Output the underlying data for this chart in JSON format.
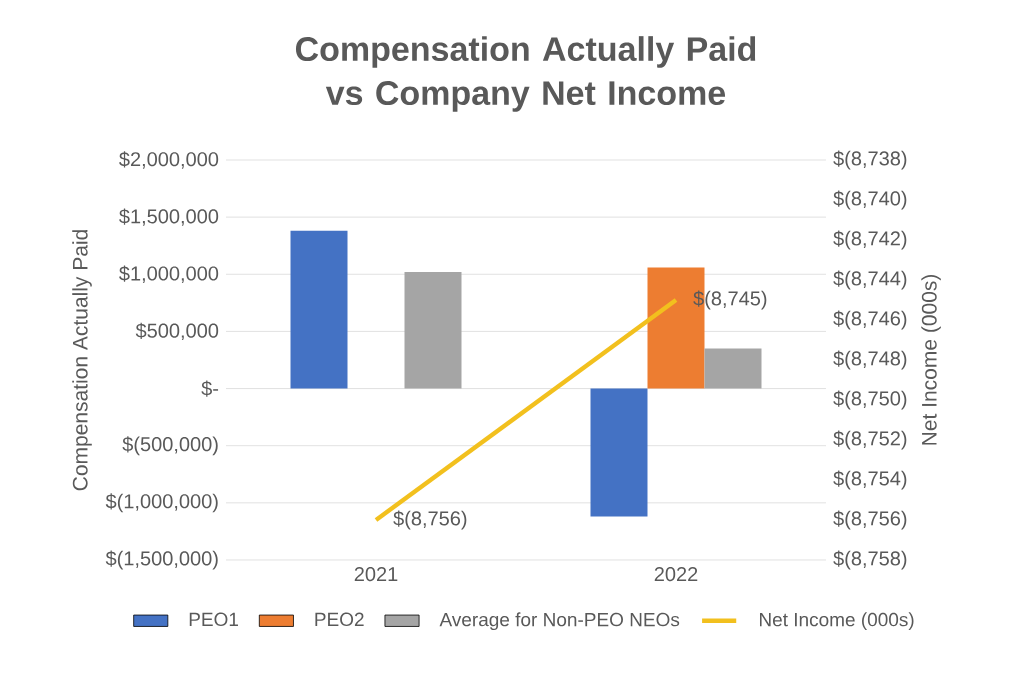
{
  "chart_data": {
    "type": "bar",
    "title": "Compensation Actually Paid vs Company Net Income",
    "ylabel": "Compensation Actually Paid",
    "y2label": "Net Income (000s)",
    "categories": [
      "2021",
      "2022"
    ],
    "series": [
      {
        "name": "PEO1",
        "color": "#4472c4",
        "values": [
          1380000,
          -1120000
        ]
      },
      {
        "name": "PEO2",
        "color": "#ed7d31",
        "values": [
          null,
          1060000
        ]
      },
      {
        "name": "Average for Non-PEO NEOs",
        "color": "#a5a5a5",
        "values": [
          1020000,
          350000
        ]
      },
      {
        "name": "Net Income (000s)",
        "type": "line",
        "axis": "y2",
        "color": "#f2c01e",
        "values": [
          -8756,
          -8745
        ],
        "value_labels": [
          "$(8,756)",
          "$(8,745)"
        ]
      }
    ],
    "ylim": [
      -1500000,
      2000000
    ],
    "yticks": [
      {
        "value": -1500000,
        "label": "$(1,500,000)"
      },
      {
        "value": -1000000,
        "label": "$(1,000,000)"
      },
      {
        "value": -500000,
        "label": "$(500,000)"
      },
      {
        "value": 0,
        "label": "$-"
      },
      {
        "value": 500000,
        "label": "$500,000"
      },
      {
        "value": 1000000,
        "label": "$1,000,000"
      },
      {
        "value": 1500000,
        "label": "$1,500,000"
      },
      {
        "value": 2000000,
        "label": "$2,000,000"
      }
    ],
    "y2lim": [
      -8758,
      -8738
    ],
    "y2ticks": [
      {
        "value": -8758,
        "label": "$(8,758)"
      },
      {
        "value": -8756,
        "label": "$(8,756)"
      },
      {
        "value": -8754,
        "label": "$(8,754)"
      },
      {
        "value": -8752,
        "label": "$(8,752)"
      },
      {
        "value": -8750,
        "label": "$(8,750)"
      },
      {
        "value": -8748,
        "label": "$(8,748)"
      },
      {
        "value": -8746,
        "label": "$(8,746)"
      },
      {
        "value": -8744,
        "label": "$(8,744)"
      },
      {
        "value": -8742,
        "label": "$(8,742)"
      },
      {
        "value": -8740,
        "label": "$(8,740)"
      },
      {
        "value": -8738,
        "label": "$(8,738)"
      }
    ],
    "grid": "y",
    "legend": "bottom"
  }
}
